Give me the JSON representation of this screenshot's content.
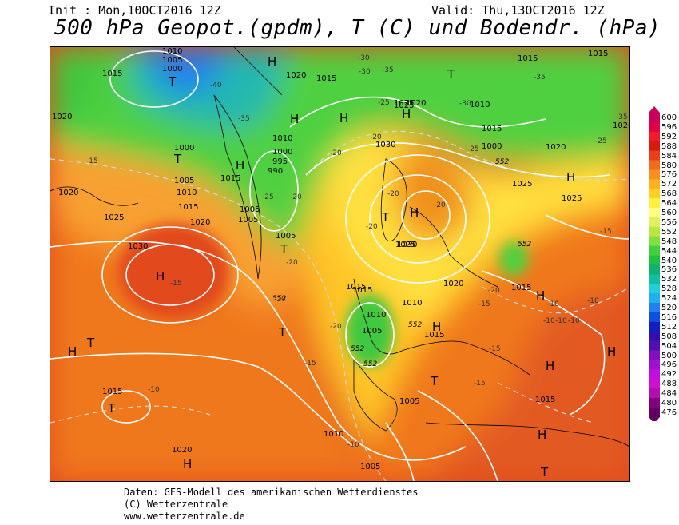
{
  "header": {
    "init": "Init : Mon,10OCT2016 12Z",
    "valid": "Valid: Thu,13OCT2016 12Z",
    "title": "500 hPa Geopot.(gpdm), T (C) und Bodendr. (hPa)"
  },
  "legend": {
    "values": [
      "600",
      "596",
      "592",
      "588",
      "584",
      "580",
      "576",
      "572",
      "568",
      "564",
      "560",
      "556",
      "552",
      "548",
      "544",
      "540",
      "536",
      "532",
      "528",
      "524",
      "520",
      "516",
      "512",
      "508",
      "504",
      "500",
      "496",
      "492",
      "488",
      "484",
      "480",
      "476"
    ],
    "colors": [
      "#c8005a",
      "#e0004a",
      "#f01a2a",
      "#d81a10",
      "#e8401a",
      "#f06a20",
      "#f89020",
      "#ffb020",
      "#ffd020",
      "#fff040",
      "#ffff80",
      "#e0f060",
      "#b8e840",
      "#80e040",
      "#40d040",
      "#20c040",
      "#10b070",
      "#10c0a0",
      "#20d0d8",
      "#20b0f0",
      "#2080f0",
      "#1050e0",
      "#1020c0",
      "#3010b0",
      "#5010b0",
      "#8010c0",
      "#a010d0",
      "#c010e0",
      "#d010d0",
      "#b010b0",
      "#800080",
      "#600060"
    ]
  },
  "map_labels": {
    "highs": [
      "H",
      "H",
      "H",
      "H",
      "H",
      "H",
      "H",
      "H",
      "H",
      "H",
      "H",
      "H",
      "H",
      "H",
      "H"
    ],
    "lows": [
      "T",
      "T",
      "T",
      "T",
      "T",
      "T",
      "T",
      "T",
      "T",
      "T"
    ],
    "pressure": [
      "1005",
      "1000",
      "1015",
      "1020",
      "1010",
      "1020",
      "1015",
      "1025",
      "1015",
      "1015",
      "1010",
      "1020",
      "1015",
      "1000",
      "1005",
      "1010",
      "1015",
      "1020",
      "1025",
      "1030",
      "1020",
      "1010",
      "1000",
      "995",
      "990",
      "1005",
      "1005",
      "1015",
      "1030",
      "1025",
      "1020",
      "1015",
      "1010",
      "1025",
      "1025",
      "1030",
      "1015",
      "1010",
      "1005",
      "1000",
      "1020",
      "1025",
      "1020",
      "1015",
      "1015",
      "1005",
      "1015",
      "1010",
      "1005",
      "1020",
      "1005",
      "1015"
    ],
    "geopot": [
      "552",
      "552",
      "552",
      "552",
      "552",
      "552"
    ],
    "temps": [
      "-30",
      "-35",
      "-40",
      "-35",
      "-25",
      "-20",
      "-20",
      "-15",
      "-15",
      "-20",
      "-20",
      "-20",
      "-25",
      "-30",
      "-30",
      "-25",
      "-20",
      "-20",
      "-15",
      "-20",
      "-10",
      "-15",
      "-20",
      "-15",
      "-10",
      "-15",
      "-10",
      "-10",
      "-10",
      "-10",
      "-15",
      "-10",
      "-20",
      "-35",
      "-35",
      "-25"
    ]
  },
  "footer": {
    "line1": "Daten: GFS-Modell des amerikanischen Wetterdienstes",
    "line2": "(C) Wetterzentrale",
    "line3": "www.wetterzentrale.de"
  }
}
